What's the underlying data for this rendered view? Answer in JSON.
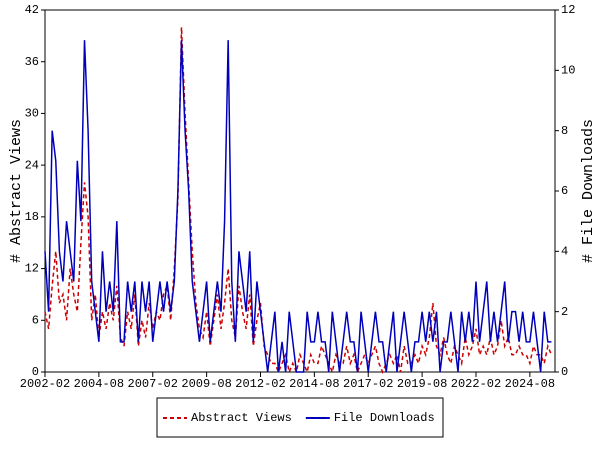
{
  "chart_data": {
    "type": "line",
    "y_label": "# Abstract Views",
    "y2_label": "# File Downloads",
    "x": [
      "2002-02",
      "2002-04",
      "2002-06",
      "2002-08",
      "2002-10",
      "2002-12",
      "2003-02",
      "2003-04",
      "2003-06",
      "2003-08",
      "2003-10",
      "2003-12",
      "2004-02",
      "2004-04",
      "2004-06",
      "2004-08",
      "2004-10",
      "2004-12",
      "2005-02",
      "2005-04",
      "2005-06",
      "2005-08",
      "2005-10",
      "2005-12",
      "2006-02",
      "2006-04",
      "2006-06",
      "2006-08",
      "2006-10",
      "2006-12",
      "2007-02",
      "2007-04",
      "2007-06",
      "2007-08",
      "2007-10",
      "2007-12",
      "2008-02",
      "2008-04",
      "2008-06",
      "2008-08",
      "2008-10",
      "2008-12",
      "2009-02",
      "2009-04",
      "2009-06",
      "2009-08",
      "2009-10",
      "2009-12",
      "2010-02",
      "2010-04",
      "2010-06",
      "2010-08",
      "2010-10",
      "2010-12",
      "2011-02",
      "2011-04",
      "2011-06",
      "2011-08",
      "2011-10",
      "2011-12",
      "2012-02",
      "2012-04",
      "2012-06",
      "2012-08",
      "2012-10",
      "2012-12",
      "2013-02",
      "2013-04",
      "2013-06",
      "2013-08",
      "2013-10",
      "2013-12",
      "2014-02",
      "2014-04",
      "2014-06",
      "2014-08",
      "2014-10",
      "2014-12",
      "2015-02",
      "2015-04",
      "2015-06",
      "2015-08",
      "2015-10",
      "2015-12",
      "2016-02",
      "2016-04",
      "2016-06",
      "2016-08",
      "2016-10",
      "2016-12",
      "2017-02",
      "2017-04",
      "2017-06",
      "2017-08",
      "2017-10",
      "2017-12",
      "2018-02",
      "2018-04",
      "2018-06",
      "2018-08",
      "2018-10",
      "2018-12",
      "2019-02",
      "2019-04",
      "2019-06",
      "2019-08",
      "2019-10",
      "2019-12",
      "2020-02",
      "2020-04",
      "2020-06",
      "2020-08",
      "2020-10",
      "2020-12",
      "2021-02",
      "2021-04",
      "2021-06",
      "2021-08",
      "2021-10",
      "2021-12",
      "2022-02",
      "2022-04",
      "2022-06",
      "2022-08",
      "2022-10",
      "2022-12",
      "2023-02",
      "2023-04",
      "2023-06",
      "2023-08",
      "2023-10",
      "2023-12",
      "2024-02",
      "2024-04",
      "2024-06",
      "2024-08",
      "2024-10",
      "2024-12",
      "2025-02",
      "2025-04",
      "2025-06",
      "2025-08"
    ],
    "series": [
      {
        "name": "Abstract Views",
        "color": "#cc0000",
        "style": "dashed",
        "values": [
          7,
          5,
          10,
          14,
          8,
          9,
          6,
          12,
          9,
          7,
          15,
          22,
          18,
          6,
          9,
          4,
          7,
          5,
          8,
          6,
          10,
          4,
          3,
          7,
          5,
          9,
          3,
          6,
          4,
          8,
          5,
          7,
          6,
          9,
          10,
          6,
          12,
          20,
          40,
          30,
          22,
          14,
          8,
          5,
          4,
          7,
          3,
          6,
          9,
          5,
          8,
          12,
          6,
          4,
          10,
          7,
          5,
          9,
          3,
          6,
          8,
          3,
          2,
          1,
          1,
          0,
          1,
          2,
          0,
          1,
          0,
          2,
          1,
          0,
          2,
          1,
          1,
          3,
          2,
          1,
          0,
          2,
          1,
          1,
          3,
          1,
          2,
          0,
          1,
          2,
          1,
          2,
          3,
          1,
          0,
          1,
          2,
          1,
          2,
          0,
          3,
          1,
          1,
          2,
          1,
          3,
          2,
          4,
          8,
          3,
          2,
          4,
          2,
          1,
          3,
          2,
          1,
          4,
          2,
          3,
          5,
          2,
          3,
          2,
          4,
          2,
          3,
          6,
          3,
          4,
          2,
          2,
          3,
          2,
          2,
          1,
          3,
          2,
          2,
          1,
          3,
          2
        ]
      },
      {
        "name": "File Downloads",
        "color": "#0000bb",
        "style": "solid",
        "axis": "y2",
        "values": [
          4,
          2,
          8,
          7,
          4,
          3,
          5,
          4,
          3,
          7,
          5,
          11,
          8,
          3,
          2,
          1,
          4,
          2,
          3,
          2,
          5,
          1,
          1,
          3,
          2,
          3,
          1,
          3,
          2,
          3,
          1,
          2,
          3,
          2,
          3,
          2,
          3,
          6,
          11,
          8,
          6,
          3,
          2,
          1,
          2,
          3,
          1,
          2,
          3,
          2,
          5,
          11,
          3,
          1,
          4,
          3,
          2,
          4,
          1,
          3,
          2,
          1,
          0,
          1,
          2,
          0,
          1,
          0,
          2,
          1,
          0,
          0,
          0,
          2,
          1,
          1,
          2,
          1,
          1,
          0,
          2,
          1,
          0,
          1,
          2,
          1,
          1,
          0,
          2,
          1,
          0,
          1,
          2,
          1,
          1,
          0,
          1,
          2,
          0,
          1,
          2,
          1,
          0,
          1,
          1,
          2,
          1,
          2,
          1,
          2,
          0,
          1,
          1,
          2,
          1,
          0,
          2,
          1,
          2,
          1,
          3,
          1,
          2,
          3,
          1,
          2,
          1,
          2,
          3,
          1,
          2,
          2,
          1,
          2,
          1,
          1,
          2,
          1,
          0,
          2,
          1,
          1
        ]
      }
    ],
    "xlim": [
      "2002-02",
      "2025-10"
    ],
    "xticks": [
      "2002-02",
      "2004-08",
      "2007-02",
      "2009-08",
      "2012-02",
      "2014-08",
      "2017-02",
      "2019-08",
      "2022-02",
      "2024-08"
    ],
    "ylim": [
      0,
      42
    ],
    "yticks": [
      0,
      6,
      12,
      18,
      24,
      30,
      36,
      42
    ],
    "y2lim": [
      0,
      12
    ],
    "y2ticks": [
      0,
      2,
      4,
      6,
      8,
      10,
      12
    ],
    "legend": "bottom"
  }
}
